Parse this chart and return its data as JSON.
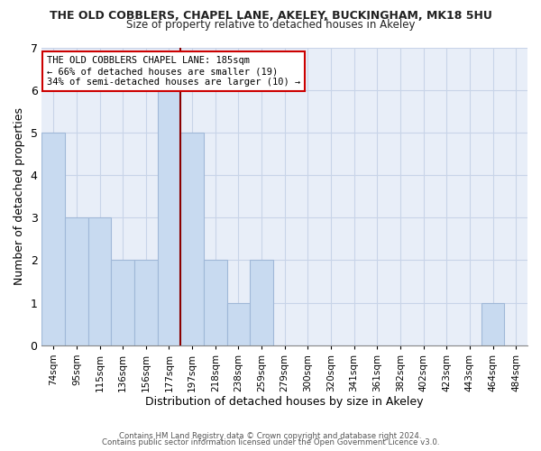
{
  "title": "THE OLD COBBLERS, CHAPEL LANE, AKELEY, BUCKINGHAM, MK18 5HU",
  "subtitle": "Size of property relative to detached houses in Akeley",
  "xlabel": "Distribution of detached houses by size in Akeley",
  "ylabel": "Number of detached properties",
  "bar_color": "#c8daf0",
  "bar_edgecolor": "#a0b8d8",
  "categories": [
    "74sqm",
    "95sqm",
    "115sqm",
    "136sqm",
    "156sqm",
    "177sqm",
    "197sqm",
    "218sqm",
    "238sqm",
    "259sqm",
    "279sqm",
    "300sqm",
    "320sqm",
    "341sqm",
    "361sqm",
    "382sqm",
    "402sqm",
    "423sqm",
    "443sqm",
    "464sqm",
    "484sqm"
  ],
  "values": [
    5,
    3,
    3,
    2,
    2,
    6,
    5,
    2,
    1,
    2,
    0,
    0,
    0,
    0,
    0,
    0,
    0,
    0,
    0,
    1,
    0
  ],
  "property_line_x": 5.5,
  "annotation_line1": "THE OLD COBBLERS CHAPEL LANE: 185sqm",
  "annotation_line2": "← 66% of detached houses are smaller (19)",
  "annotation_line3": "34% of semi-detached houses are larger (10) →",
  "vline_color": "#8b0000",
  "ylim": [
    0,
    7
  ],
  "yticks": [
    0,
    1,
    2,
    3,
    4,
    5,
    6,
    7
  ],
  "footer_line1": "Contains HM Land Registry data © Crown copyright and database right 2024.",
  "footer_line2": "Contains public sector information licensed under the Open Government Licence v3.0.",
  "background_color": "#e8eef8",
  "grid_color": "#c8d4e8"
}
